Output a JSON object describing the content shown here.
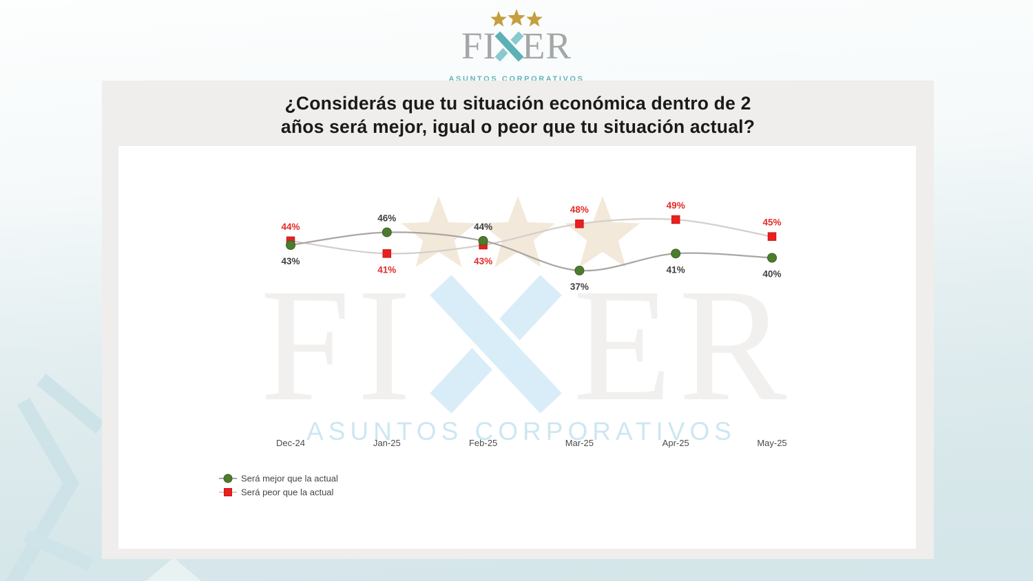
{
  "header_logo": {
    "brand": "FIXER",
    "brand_prefix": "FI",
    "brand_suffix": "ER",
    "tagline": "ASUNTOS CORPORATIVOS",
    "colors": {
      "stars_gold": "#c59e3e",
      "letters_gray": "#a6a6a8",
      "x_teal_dark": "#5bb1b6",
      "x_teal_light": "#8ac9ce",
      "tagline_teal": "#64b4b8"
    }
  },
  "slide": {
    "title_line1": "¿Considerás que tu situación económica dentro de 2",
    "title_line2": "años será mejor, igual o peor que tu situación actual?"
  },
  "watermark": {
    "brand_prefix": "FI",
    "brand_suffix": "ER",
    "tagline": "ASUNTOS CORPORATIVOS",
    "colors": {
      "stars": "#f2e9da",
      "letters": "#f1f0ee",
      "x": "#d9edf8",
      "tagline": "#cde7f2"
    }
  },
  "chart_data": {
    "type": "line",
    "categories": [
      "Dec-24",
      "Jan-25",
      "Feb-25",
      "Mar-25",
      "Apr-25",
      "May-25"
    ],
    "series": [
      {
        "name": "Será mejor que la actual",
        "values": [
          43,
          46,
          44,
          37,
          41,
          40
        ],
        "marker": "circle",
        "marker_color": "#4c7c2e",
        "marker_border": "#3a6122",
        "line_color": "#a9a6a4",
        "label_color": "#3f3f3f"
      },
      {
        "name": "Será peor que la actual",
        "values": [
          44,
          41,
          43,
          48,
          49,
          45
        ],
        "marker": "square",
        "marker_color": "#ea1f1f",
        "marker_border": "#c41b17",
        "line_color": "#d5cecb",
        "label_color": "#e42a26"
      }
    ],
    "value_suffix": "%",
    "data_labels": true,
    "grid": false,
    "y_axis_visible": false,
    "smooth_lines": true,
    "legend_position": "bottom-left",
    "axis_label_color": "#4a4a4a",
    "legend_text_color": "#444444"
  }
}
